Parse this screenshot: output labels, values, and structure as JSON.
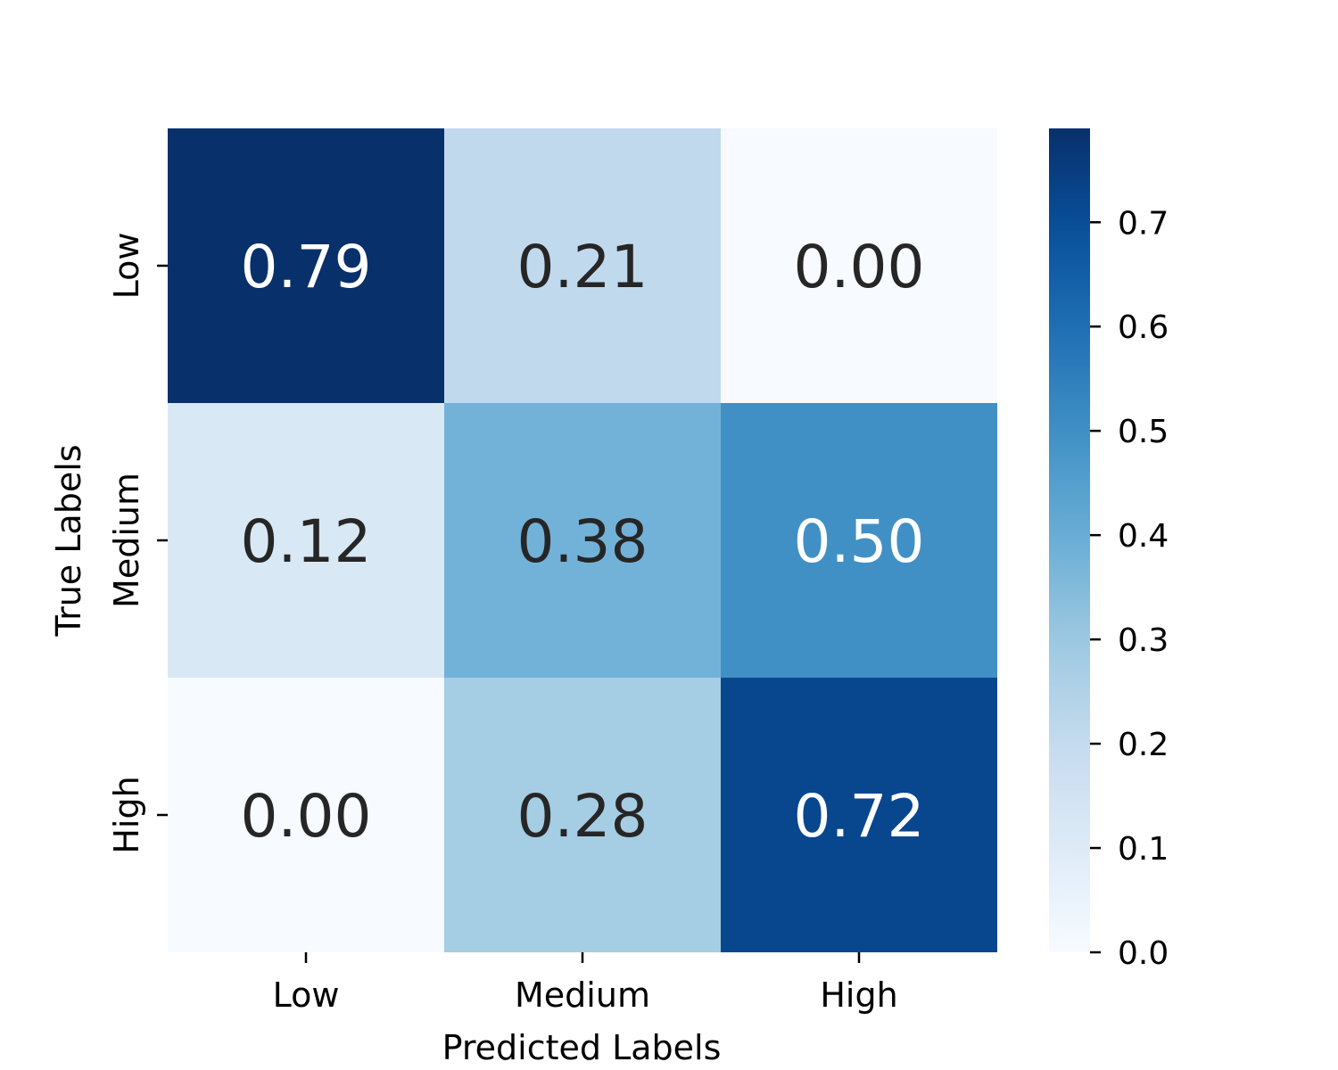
{
  "chart_data": {
    "type": "heatmap",
    "title": "",
    "xlabel": "Predicted Labels",
    "ylabel": "True Labels",
    "x_categories": [
      "Low",
      "Medium",
      "High"
    ],
    "y_categories": [
      "Low",
      "Medium",
      "High"
    ],
    "values": [
      [
        0.79,
        0.21,
        0.0
      ],
      [
        0.12,
        0.38,
        0.5
      ],
      [
        0.0,
        0.28,
        0.72
      ]
    ],
    "annotations": [
      [
        "0.79",
        "0.21",
        "0.00"
      ],
      [
        "0.12",
        "0.38",
        "0.50"
      ],
      [
        "0.00",
        "0.28",
        "0.72"
      ]
    ],
    "colormap": "Blues",
    "vmin": 0.0,
    "vmax": 0.79,
    "colorbar_ticks": [
      0.0,
      0.1,
      0.2,
      0.3,
      0.4,
      0.5,
      0.6,
      0.7
    ],
    "colorbar_tick_labels": [
      "0.0",
      "0.1",
      "0.2",
      "0.3",
      "0.4",
      "0.5",
      "0.6",
      "0.7"
    ],
    "colors": {
      "dark_text": "#262626",
      "light_text": "#ffffff",
      "axis": "#000000"
    }
  }
}
